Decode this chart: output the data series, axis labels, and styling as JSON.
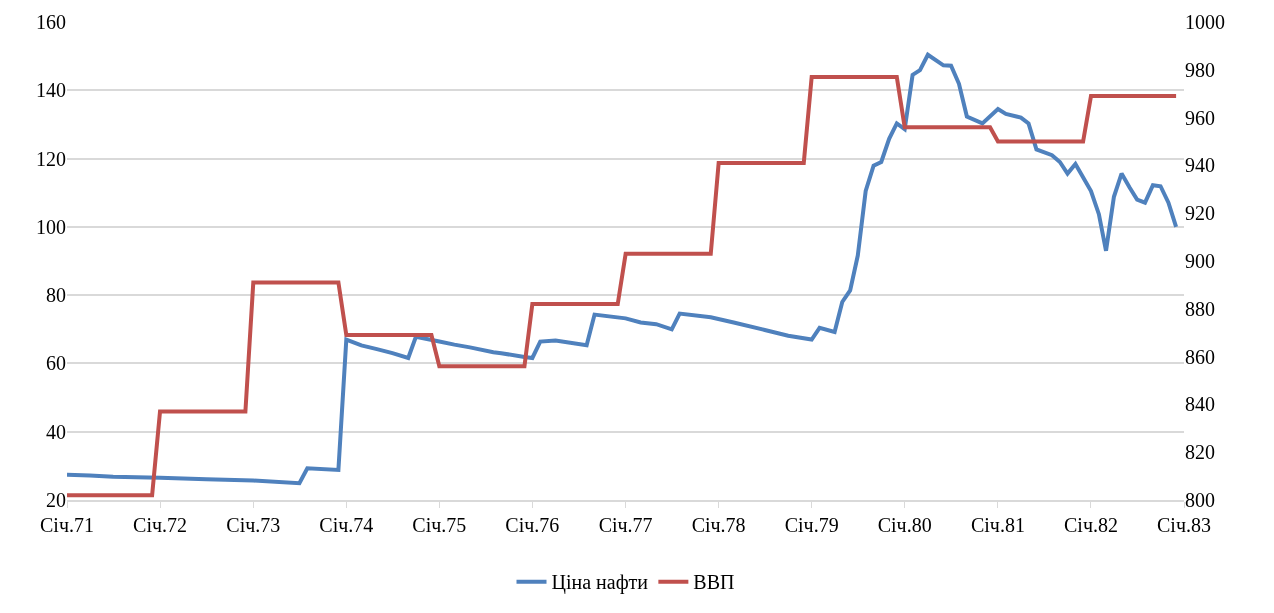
{
  "chart_data": {
    "type": "line",
    "xlim": [
      "1971-01",
      "1983-01"
    ],
    "xticks": [
      {
        "value": "1971-01",
        "label": "Січ.71"
      },
      {
        "value": "1972-01",
        "label": "Січ.72"
      },
      {
        "value": "1973-01",
        "label": "Січ.73"
      },
      {
        "value": "1974-01",
        "label": "Січ.74"
      },
      {
        "value": "1975-01",
        "label": "Січ.75"
      },
      {
        "value": "1976-01",
        "label": "Січ.76"
      },
      {
        "value": "1977-01",
        "label": "Січ.77"
      },
      {
        "value": "1978-01",
        "label": "Січ.78"
      },
      {
        "value": "1979-01",
        "label": "Січ.79"
      },
      {
        "value": "1980-01",
        "label": "Січ.80"
      },
      {
        "value": "1981-01",
        "label": "Січ.81"
      },
      {
        "value": "1982-01",
        "label": "Січ.82"
      },
      {
        "value": "1983-01",
        "label": "Січ.83"
      }
    ],
    "ylim": [
      20,
      160
    ],
    "yticks": [
      20,
      40,
      60,
      80,
      100,
      120,
      140,
      160
    ],
    "y2lim": [
      800,
      1000
    ],
    "y2ticks": [
      800,
      820,
      840,
      860,
      880,
      900,
      920,
      940,
      960,
      980,
      1000
    ],
    "grid": "y",
    "legend": "bottom",
    "marker": "none",
    "line_style": "solid",
    "series": [
      {
        "name": "Ціна нафти",
        "color": "#4f81bd",
        "x": [
          "1971-01",
          "1971-04",
          "1971-07",
          "1972-01",
          "1972-07",
          "1973-01",
          "1973-07",
          "1973-08",
          "1973-12",
          "1974-01",
          "1974-03",
          "1974-05",
          "1974-07",
          "1974-09",
          "1974-10",
          "1975-01",
          "1975-03",
          "1975-05",
          "1975-08",
          "1975-09",
          "1975-12",
          "1976-01",
          "1976-02",
          "1976-04",
          "1976-08",
          "1976-09",
          "1977-01",
          "1977-03",
          "1977-05",
          "1977-07",
          "1977-08",
          "1977-12",
          "1978-03",
          "1978-07",
          "1978-10",
          "1979-01",
          "1979-02",
          "1979-04",
          "1979-05",
          "1979-06",
          "1979-07",
          "1979-08",
          "1979-09",
          "1979-10",
          "1979-11",
          "1979-12",
          "1980-01",
          "1980-02",
          "1980-03",
          "1980-04",
          "1980-06",
          "1980-07",
          "1980-08",
          "1980-09",
          "1980-11",
          "1981-01",
          "1981-02",
          "1981-04",
          "1981-05",
          "1981-06",
          "1981-08",
          "1981-09",
          "1981-10",
          "1981-11",
          "1982-01",
          "1982-02",
          "1982-03",
          "1982-04",
          "1982-05",
          "1982-06",
          "1982-07",
          "1982-08",
          "1982-09",
          "1982-10",
          "1982-11",
          "1982-12"
        ],
        "values": [
          27.4,
          27.2,
          26.8,
          26.5,
          26.1,
          25.7,
          24.9,
          29.3,
          28.8,
          67,
          65.3,
          64.2,
          63,
          61.6,
          67.8,
          66.4,
          65.5,
          64.7,
          63.3,
          63,
          61.9,
          61.6,
          66.4,
          66.7,
          65.3,
          74.3,
          73.2,
          72,
          71.5,
          70,
          74.6,
          73.5,
          72,
          69.8,
          68.1,
          67,
          70.4,
          69.2,
          78,
          81.4,
          91.6,
          110.5,
          117.9,
          119,
          125.8,
          130.3,
          128.6,
          144.5,
          145.9,
          150.4,
          147.3,
          147.2,
          141.9,
          132.3,
          130.3,
          134.5,
          133.1,
          132,
          130.3,
          122.7,
          121,
          119,
          115.6,
          118.4,
          110.5,
          103.7,
          93,
          108.8,
          115.6,
          111.6,
          108,
          107.1,
          112.2,
          111.9,
          107.1,
          100
        ]
      },
      {
        "name": "ВВП",
        "color": "#c0504d",
        "axis": "y2",
        "x": [
          "1971-01",
          "1971-12",
          "1972-01",
          "1972-12",
          "1973-01",
          "1973-12",
          "1974-01",
          "1974-12",
          "1975-01",
          "1975-12",
          "1976-01",
          "1976-12",
          "1977-01",
          "1977-12",
          "1978-01",
          "1978-12",
          "1979-01",
          "1979-12",
          "1980-01",
          "1980-12",
          "1981-01",
          "1981-12",
          "1982-01",
          "1982-12"
        ],
        "values": [
          802,
          802,
          837,
          837,
          891,
          891,
          869,
          869,
          856,
          856,
          882,
          882,
          903,
          903,
          941,
          941,
          977,
          977,
          956,
          956,
          950,
          950,
          969,
          969
        ]
      }
    ]
  }
}
